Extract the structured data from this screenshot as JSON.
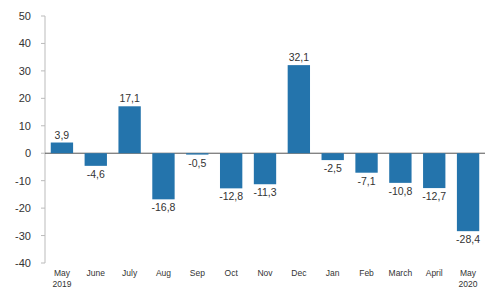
{
  "chart_data": {
    "type": "bar",
    "categories": [
      "May 2019",
      "June",
      "July",
      "Aug",
      "Sep",
      "Oct",
      "Nov",
      "Dec",
      "Jan",
      "Feb",
      "March",
      "April",
      "May 2020"
    ],
    "values": [
      3.9,
      -4.6,
      17.1,
      -16.8,
      -0.5,
      -12.8,
      -11.3,
      32.1,
      -2.5,
      -7.1,
      -10.8,
      -12.7,
      -28.4
    ],
    "value_labels": [
      "3,9",
      "-4,6",
      "17,1",
      "-16,8",
      "-0,5",
      "-12,8",
      "-11,3",
      "32,1",
      "-2,5",
      "-7,1",
      "-10,8",
      "-12,7",
      "-28,4"
    ],
    "color": "#2474ac",
    "ylim": [
      -40,
      50
    ],
    "yticks": [
      -40,
      -30,
      -20,
      -10,
      0,
      10,
      20,
      30,
      40,
      50
    ],
    "grid": false,
    "data_labels": true
  }
}
